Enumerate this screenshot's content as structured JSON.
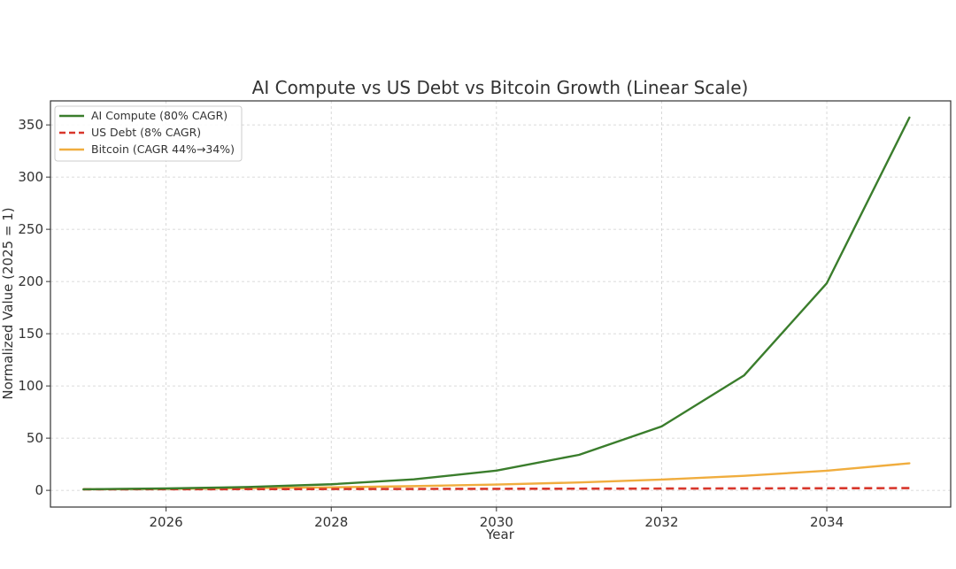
{
  "chart_data": {
    "type": "line",
    "title": "AI Compute vs US Debt vs Bitcoin Growth (Linear Scale)",
    "xlabel": "Year",
    "ylabel": "Normalized Value (2025 = 1)",
    "xlim": [
      2024.6,
      2035.5
    ],
    "ylim": [
      -16,
      373
    ],
    "xticks": [
      2026,
      2028,
      2030,
      2032,
      2034
    ],
    "yticks": [
      0,
      50,
      100,
      150,
      200,
      250,
      300,
      350
    ],
    "grid": true,
    "legend_position": "top-left",
    "x": [
      2025,
      2026,
      2027,
      2028,
      2029,
      2030,
      2031,
      2032,
      2033,
      2034,
      2035
    ],
    "series": [
      {
        "name": "AI Compute (80% CAGR)",
        "color": "#3a7d2c",
        "style": "solid",
        "values": [
          1,
          1.8,
          3.24,
          5.83,
          10.5,
          18.9,
          34,
          61.2,
          110.2,
          198.4,
          357
        ]
      },
      {
        "name": "US Debt (8% CAGR)",
        "color": "#d8362b",
        "style": "dashed",
        "values": [
          1,
          1.08,
          1.17,
          1.26,
          1.36,
          1.47,
          1.59,
          1.71,
          1.85,
          2.0,
          2.16
        ]
      },
      {
        "name": "Bitcoin (CAGR 44%→34%)",
        "color": "#f0ad3e",
        "style": "solid",
        "values": [
          1,
          1.44,
          2.05,
          2.89,
          4.02,
          5.55,
          7.6,
          10.3,
          13.9,
          18.8,
          25.9
        ]
      }
    ]
  }
}
